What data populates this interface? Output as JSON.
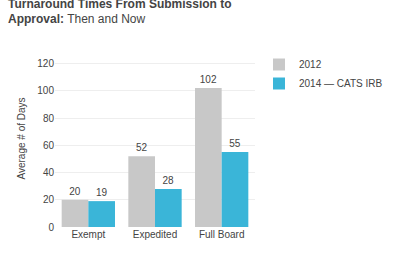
{
  "chart_data": {
    "type": "bar",
    "title": "Turnaround Times From Submission to\nApproval: Then and Now",
    "y_label": "Average # of Days",
    "categories": [
      "Exempt",
      "Expedited",
      "Full Board"
    ],
    "series": [
      {
        "name": "2012",
        "color": "#c8c8c8",
        "values": [
          20,
          52,
          102
        ]
      },
      {
        "name": "2014 — CATS IRB",
        "color": "#3ab5d8",
        "values": [
          19,
          28,
          55
        ]
      }
    ],
    "ylim": [
      0,
      130
    ],
    "yticks": [
      0,
      20,
      40,
      60,
      80,
      100,
      120
    ],
    "grid": true,
    "legend": "right",
    "data_labels": true
  }
}
